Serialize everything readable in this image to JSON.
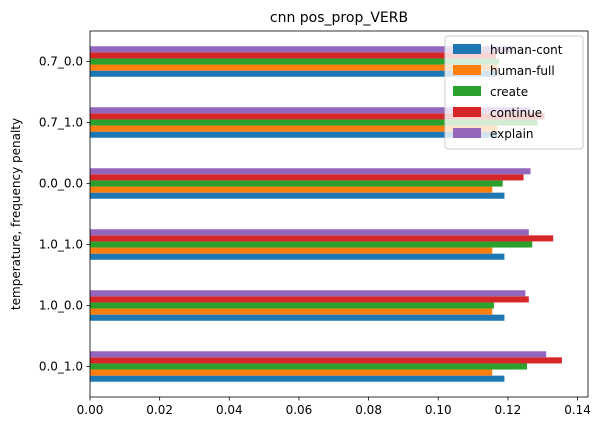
{
  "chart_data": {
    "type": "bar",
    "orientation": "horizontal",
    "title": "cnn pos_prop_VERB",
    "xlabel": "",
    "ylabel": "temperature, frequency penalty",
    "categories": [
      "0.0_1.0",
      "1.0_0.0",
      "1.0_1.0",
      "0.0_0.0",
      "0.7_1.0",
      "0.7_0.0"
    ],
    "xlim": [
      0,
      0.143
    ],
    "xticks": [
      "0.00",
      "0.02",
      "0.04",
      "0.06",
      "0.08",
      "0.10",
      "0.12",
      "0.14"
    ],
    "xtick_values": [
      0,
      0.02,
      0.04,
      0.06,
      0.08,
      0.1,
      0.12,
      0.14
    ],
    "grid": false,
    "legend_position": "top-right",
    "series": [
      {
        "name": "human-cont",
        "color": "#1f77b4",
        "values": [
          0.119,
          0.119,
          0.119,
          0.119,
          0.117,
          0.117
        ]
      },
      {
        "name": "human-full",
        "color": "#ff7f0e",
        "values": [
          0.1155,
          0.1155,
          0.1155,
          0.1155,
          0.117,
          0.117
        ]
      },
      {
        "name": "create",
        "color": "#2ca02c",
        "values": [
          0.1255,
          0.116,
          0.127,
          0.1185,
          0.1285,
          0.1175
        ]
      },
      {
        "name": "continue",
        "color": "#d62728",
        "values": [
          0.1355,
          0.126,
          0.133,
          0.1245,
          0.1305,
          0.1165
        ]
      },
      {
        "name": "explain",
        "color": "#9467bd",
        "values": [
          0.131,
          0.125,
          0.126,
          0.1265,
          0.1265,
          0.1215
        ]
      }
    ]
  }
}
